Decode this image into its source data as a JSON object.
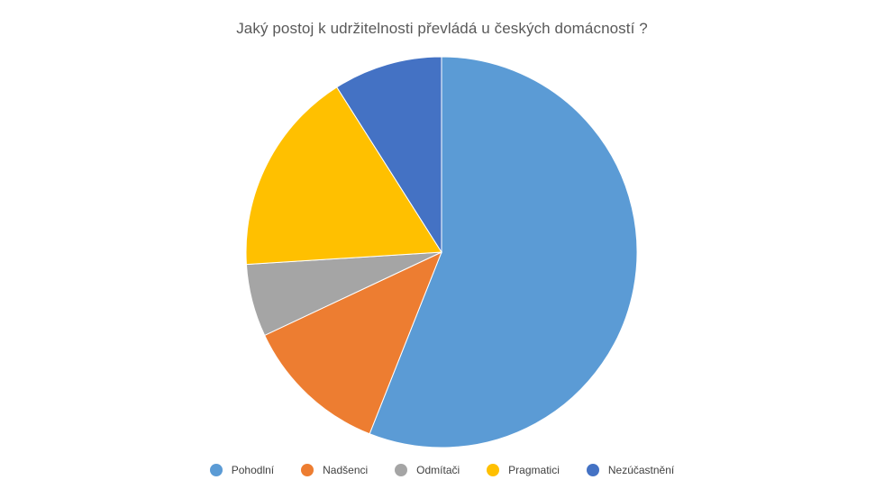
{
  "chart_data": {
    "type": "pie",
    "title": "Jaký postoj k udržitelnosti převládá u českých domácností ?",
    "categories": [
      "Pohodlní",
      "Nadšenci",
      "Odmítači",
      "Pragmatici",
      "Nezúčastnění"
    ],
    "values": [
      56,
      12,
      6,
      17,
      9
    ],
    "unit": "%",
    "colors": [
      "#5B9BD5",
      "#ED7D31",
      "#A5A5A5",
      "#FFC000",
      "#4472C4"
    ],
    "legend_position": "bottom",
    "start_angle_deg": 0,
    "direction": "clockwise"
  }
}
